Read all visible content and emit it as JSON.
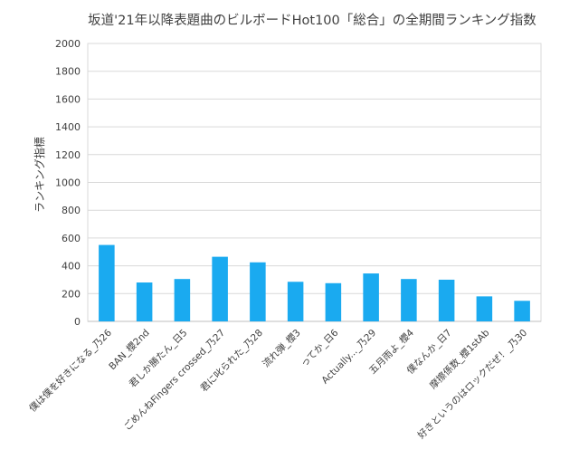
{
  "chart_data": {
    "type": "bar",
    "title": "坂道'21年以降表題曲のビルボードHot100「総合」の全期間ランキング指数",
    "xlabel": "",
    "ylabel": "ランキング指標",
    "ylim": [
      0,
      2000
    ],
    "yticks": [
      "0",
      "200",
      "400",
      "600",
      "800",
      "1000",
      "1200",
      "1400",
      "1600",
      "1800",
      "2000"
    ],
    "grid": true,
    "legend": "none",
    "bar_color": "#1aaaf0",
    "categories": [
      "僕は僕を好きになる_乃26",
      "BAN_櫻2nd",
      "君しか勝たん_日5",
      "ごめんねFingers crossed_乃27",
      "君に叱られた_乃28",
      "流れ弾_櫻3",
      "ってか_日6",
      "Actually..._乃29",
      "五月雨よ_櫻4",
      "僕なんか_日7",
      "摩擦係数_櫻1stAb",
      "好きというのはロックだぜ！_乃30"
    ],
    "values": [
      550,
      280,
      305,
      465,
      425,
      285,
      275,
      345,
      305,
      300,
      180,
      148
    ]
  }
}
